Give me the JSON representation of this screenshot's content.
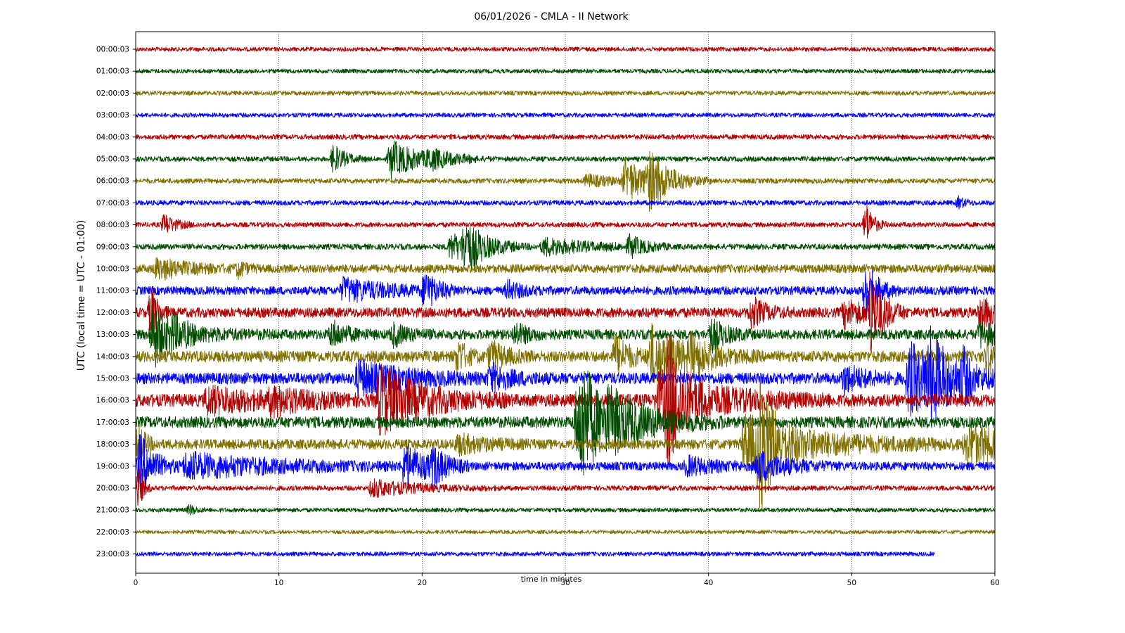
{
  "chart_data": {
    "type": "line",
    "subtype": "helicorder",
    "title": "06/01/2026 - CMLA - II Network",
    "xlabel": "time in minutes",
    "ylabel": "UTC (local time = UTC - 01:00)",
    "xlim": [
      0,
      60
    ],
    "x_ticks": [
      0,
      10,
      20,
      30,
      40,
      50,
      60
    ],
    "grid": "vertical dotted at x ticks",
    "color_cycle": [
      "#b00000",
      "#004d00",
      "#807000",
      "#0000ff"
    ],
    "rows": [
      {
        "label": "00:00:03",
        "color": "#b00000",
        "x_end": 60,
        "noise": 3,
        "events": []
      },
      {
        "label": "01:00:03",
        "color": "#004d00",
        "x_end": 60,
        "noise": 3,
        "events": []
      },
      {
        "label": "02:00:03",
        "color": "#807000",
        "x_end": 60,
        "noise": 3,
        "events": []
      },
      {
        "label": "03:00:03",
        "color": "#0000ff",
        "x_end": 60,
        "noise": 3,
        "events": []
      },
      {
        "label": "04:00:03",
        "color": "#b00000",
        "x_end": 60,
        "noise": 3.5,
        "events": []
      },
      {
        "label": "05:00:03",
        "color": "#004d00",
        "x_end": 60,
        "noise": 3.5,
        "events": [
          {
            "x": 13.8,
            "amp": 20,
            "dur": 0.8
          },
          {
            "x": 17.8,
            "amp": 26,
            "dur": 2.0
          },
          {
            "x": 20.5,
            "amp": 10,
            "dur": 1.5
          }
        ]
      },
      {
        "label": "06:00:03",
        "color": "#807000",
        "x_end": 60,
        "noise": 3.5,
        "events": [
          {
            "x": 31.5,
            "amp": 8,
            "dur": 2.0
          },
          {
            "x": 34.2,
            "amp": 30,
            "dur": 1.5
          },
          {
            "x": 35.8,
            "amp": 35,
            "dur": 1.5
          }
        ]
      },
      {
        "label": "07:00:03",
        "color": "#0000ff",
        "x_end": 60,
        "noise": 3.5,
        "events": [
          {
            "x": 57.5,
            "amp": 8,
            "dur": 0.4
          }
        ]
      },
      {
        "label": "08:00:03",
        "color": "#b00000",
        "x_end": 60,
        "noise": 3.5,
        "events": [
          {
            "x": 2.0,
            "amp": 14,
            "dur": 0.8
          },
          {
            "x": 51.0,
            "amp": 30,
            "dur": 0.5
          }
        ]
      },
      {
        "label": "09:00:03",
        "color": "#004d00",
        "x_end": 60,
        "noise": 4,
        "events": [
          {
            "x": 22.0,
            "amp": 18,
            "dur": 2.0
          },
          {
            "x": 23.0,
            "amp": 30,
            "dur": 1.2
          },
          {
            "x": 28.5,
            "amp": 12,
            "dur": 3.0
          },
          {
            "x": 34.5,
            "amp": 14,
            "dur": 1.0
          }
        ]
      },
      {
        "label": "10:00:03",
        "color": "#807000",
        "x_end": 60,
        "noise": 6,
        "events": [
          {
            "x": 1.5,
            "amp": 14,
            "dur": 2.0
          },
          {
            "x": 7.2,
            "amp": 10,
            "dur": 0.5
          }
        ]
      },
      {
        "label": "11:00:03",
        "color": "#0000ff",
        "x_end": 60,
        "noise": 6,
        "events": [
          {
            "x": 14.5,
            "amp": 16,
            "dur": 3.0
          },
          {
            "x": 20.2,
            "amp": 26,
            "dur": 0.8
          },
          {
            "x": 26.0,
            "amp": 12,
            "dur": 1.0
          },
          {
            "x": 51.0,
            "amp": 40,
            "dur": 0.8
          }
        ]
      },
      {
        "label": "12:00:03",
        "color": "#b00000",
        "x_end": 60,
        "noise": 7,
        "events": [
          {
            "x": 1.1,
            "amp": 38,
            "dur": 0.4
          },
          {
            "x": 43.0,
            "amp": 20,
            "dur": 1.0
          },
          {
            "x": 49.5,
            "amp": 18,
            "dur": 1.5
          },
          {
            "x": 51.3,
            "amp": 60,
            "dur": 0.8
          },
          {
            "x": 59.0,
            "amp": 20,
            "dur": 1.2
          }
        ]
      },
      {
        "label": "13:00:03",
        "color": "#004d00",
        "x_end": 60,
        "noise": 7,
        "events": [
          {
            "x": 1.2,
            "amp": 50,
            "dur": 1.0
          },
          {
            "x": 2.5,
            "amp": 14,
            "dur": 2.5
          },
          {
            "x": 13.7,
            "amp": 18,
            "dur": 1.0
          },
          {
            "x": 18.0,
            "amp": 14,
            "dur": 1.0
          },
          {
            "x": 26.5,
            "amp": 14,
            "dur": 1.0
          },
          {
            "x": 40.2,
            "amp": 22,
            "dur": 1.0
          },
          {
            "x": 59.0,
            "amp": 16,
            "dur": 1.5
          }
        ]
      },
      {
        "label": "14:00:03",
        "color": "#807000",
        "x_end": 60,
        "noise": 8,
        "events": [
          {
            "x": 22.5,
            "amp": 24,
            "dur": 0.6
          },
          {
            "x": 24.8,
            "amp": 20,
            "dur": 1.0
          },
          {
            "x": 33.5,
            "amp": 28,
            "dur": 1.0
          },
          {
            "x": 36.0,
            "amp": 40,
            "dur": 2.5
          },
          {
            "x": 38.8,
            "amp": 20,
            "dur": 1.0
          },
          {
            "x": 59.5,
            "amp": 22,
            "dur": 1.0
          }
        ]
      },
      {
        "label": "15:00:03",
        "color": "#0000ff",
        "x_end": 60,
        "noise": 8,
        "events": [
          {
            "x": 15.5,
            "amp": 22,
            "dur": 3.5
          },
          {
            "x": 24.8,
            "amp": 16,
            "dur": 1.5
          },
          {
            "x": 49.5,
            "amp": 18,
            "dur": 1.5
          },
          {
            "x": 54.0,
            "amp": 50,
            "dur": 3.0
          },
          {
            "x": 55.5,
            "amp": 40,
            "dur": 1.0
          },
          {
            "x": 57.8,
            "amp": 30,
            "dur": 0.4
          }
        ]
      },
      {
        "label": "16:00:03",
        "color": "#b00000",
        "x_end": 60,
        "noise": 9,
        "events": [
          {
            "x": 5.0,
            "amp": 16,
            "dur": 4.0
          },
          {
            "x": 9.5,
            "amp": 14,
            "dur": 2.0
          },
          {
            "x": 17.0,
            "amp": 48,
            "dur": 3.0
          },
          {
            "x": 36.5,
            "amp": 40,
            "dur": 4.0
          },
          {
            "x": 37.2,
            "amp": 68,
            "dur": 0.8
          }
        ]
      },
      {
        "label": "17:00:03",
        "color": "#004d00",
        "x_end": 60,
        "noise": 8,
        "events": [
          {
            "x": 30.8,
            "amp": 48,
            "dur": 3.5
          },
          {
            "x": 31.2,
            "amp": 58,
            "dur": 0.6
          },
          {
            "x": 33.0,
            "amp": 24,
            "dur": 2.0
          }
        ]
      },
      {
        "label": "18:00:03",
        "color": "#807000",
        "x_end": 60,
        "noise": 7,
        "events": [
          {
            "x": 0.2,
            "amp": 26,
            "dur": 0.5
          },
          {
            "x": 22.5,
            "amp": 12,
            "dur": 2.0
          },
          {
            "x": 42.5,
            "amp": 40,
            "dur": 5.0
          },
          {
            "x": 43.6,
            "amp": 70,
            "dur": 0.8
          },
          {
            "x": 58.0,
            "amp": 30,
            "dur": 3.0
          }
        ]
      },
      {
        "label": "19:00:03",
        "color": "#0000ff",
        "x_end": 60,
        "noise": 6,
        "events": [
          {
            "x": 0.3,
            "amp": 45,
            "dur": 1.0
          },
          {
            "x": 3.5,
            "amp": 18,
            "dur": 6.0
          },
          {
            "x": 18.8,
            "amp": 30,
            "dur": 1.5
          },
          {
            "x": 20.8,
            "amp": 22,
            "dur": 0.8
          },
          {
            "x": 38.5,
            "amp": 12,
            "dur": 2.0
          },
          {
            "x": 43.5,
            "amp": 20,
            "dur": 2.0
          }
        ]
      },
      {
        "label": "20:00:03",
        "color": "#b00000",
        "x_end": 60,
        "noise": 3.5,
        "events": [
          {
            "x": 0.2,
            "amp": 32,
            "dur": 0.3
          },
          {
            "x": 16.5,
            "amp": 12,
            "dur": 3.0
          }
        ]
      },
      {
        "label": "21:00:03",
        "color": "#004d00",
        "x_end": 60,
        "noise": 3,
        "events": [
          {
            "x": 3.8,
            "amp": 7,
            "dur": 0.4
          }
        ]
      },
      {
        "label": "22:00:03",
        "color": "#807000",
        "x_end": 60,
        "noise": 2.5,
        "events": []
      },
      {
        "label": "23:00:03",
        "color": "#0000ff",
        "x_end": 55.8,
        "noise": 3,
        "events": []
      }
    ]
  }
}
